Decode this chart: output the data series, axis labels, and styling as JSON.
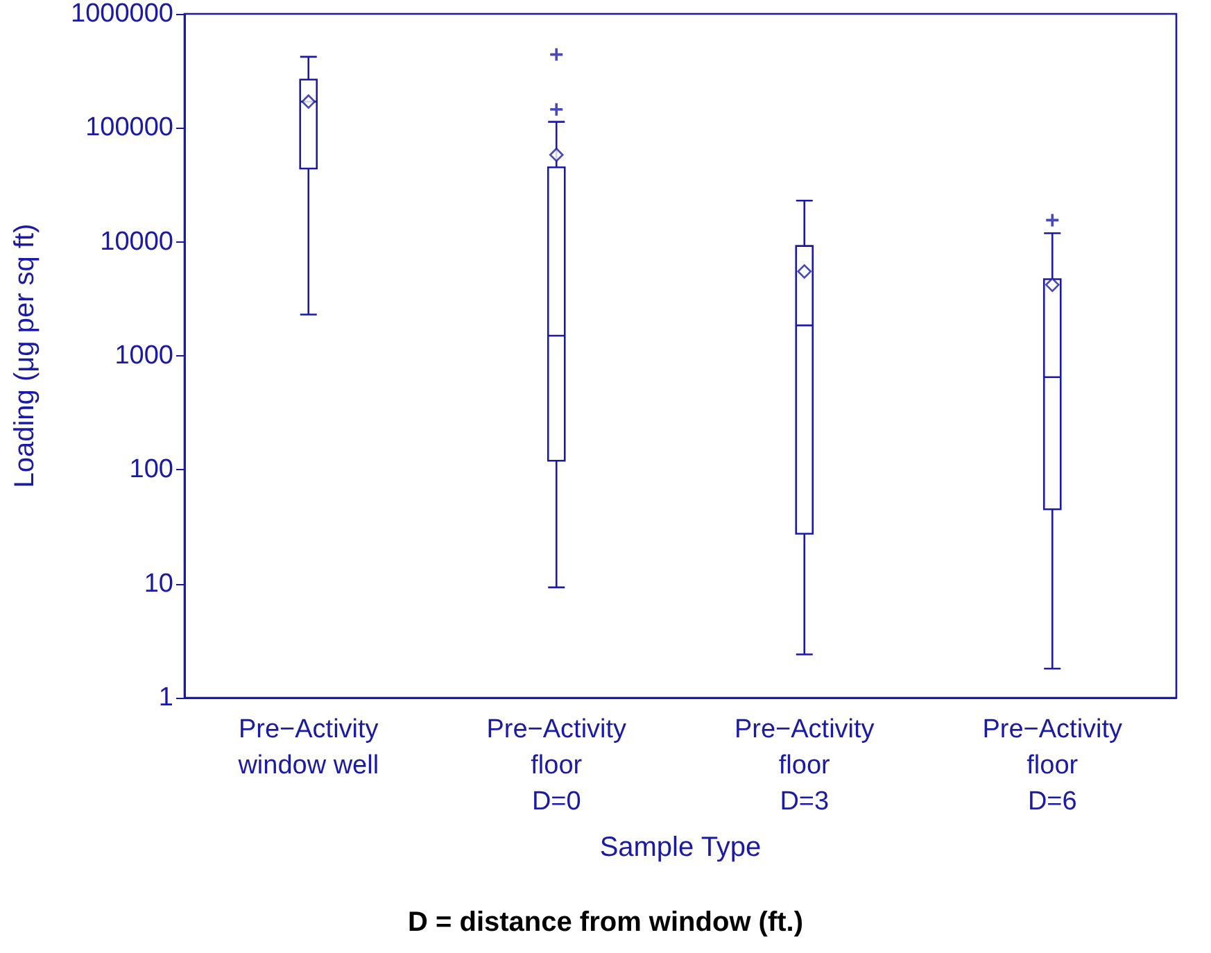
{
  "chart_data": {
    "type": "box",
    "categories": [
      "Pre−Activity\nwindow well",
      "Pre−Activity\nfloor\nD=0",
      "Pre−Activity\nfloor\nD=3",
      "Pre−Activity\nfloor\nD=6"
    ],
    "boxes": [
      {
        "low": 2300,
        "q1": 44000,
        "median": 170000,
        "q3": 265000,
        "high": 420000,
        "mean": 170000
      },
      {
        "low": 9.3,
        "q1": 120,
        "median": 1500,
        "q3": 45000,
        "high": 113000,
        "mean": 58000,
        "outliers": [
          145000,
          440000
        ]
      },
      {
        "low": 2.4,
        "q1": 27.5,
        "median": 1850,
        "q3": 9200,
        "high": 23000,
        "mean": 5500
      },
      {
        "low": 1.8,
        "q1": 45,
        "median": 650,
        "q3": 4700,
        "high": 11900,
        "mean": 4200,
        "outliers": [
          15500
        ]
      }
    ],
    "color": "#1a1aa6",
    "log": "y",
    "ylim": [
      1,
      1000000
    ],
    "yticks": [
      1,
      10,
      100,
      1000,
      10000,
      100000,
      1000000
    ],
    "xlabel": "Sample Type",
    "ylabel": "Loading (μg per sq ft)",
    "annotations": [
      "D = distance from window (ft.)"
    ]
  }
}
